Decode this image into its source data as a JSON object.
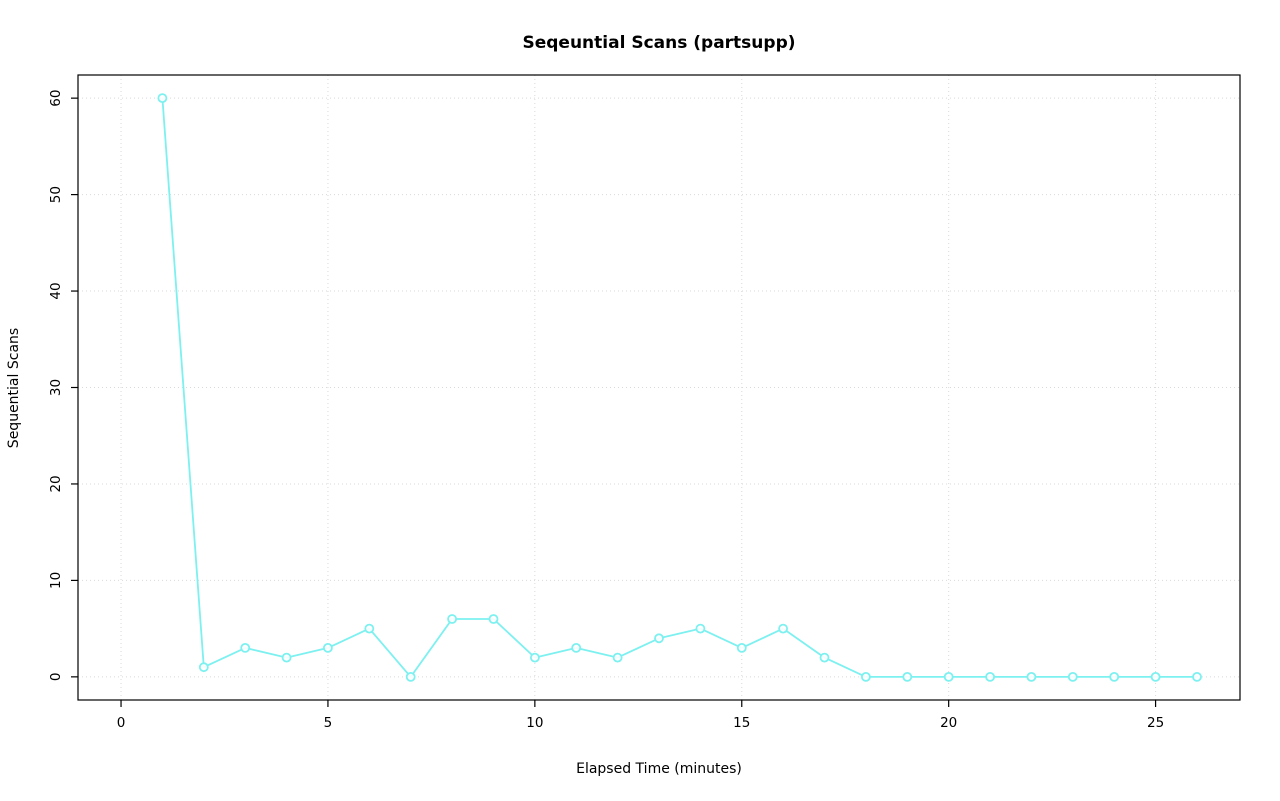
{
  "chart_data": {
    "type": "line",
    "title": "Seqeuntial Scans (partsupp)",
    "xlabel": "Elapsed Time (minutes)",
    "ylabel": "Sequential Scans",
    "x": [
      1,
      2,
      3,
      4,
      5,
      6,
      7,
      8,
      9,
      10,
      11,
      12,
      13,
      14,
      15,
      16,
      17,
      18,
      19,
      20,
      21,
      22,
      23,
      24,
      25,
      26
    ],
    "y": [
      60,
      1,
      3,
      2,
      3,
      5,
      0,
      6,
      6,
      2,
      3,
      2,
      4,
      5,
      3,
      5,
      2,
      0,
      0,
      0,
      0,
      0,
      0,
      0,
      0,
      0
    ],
    "x_ticks": [
      0,
      5,
      10,
      15,
      20,
      25
    ],
    "y_ticks": [
      0,
      10,
      20,
      30,
      40,
      50,
      60
    ],
    "xlim": [
      -1.04,
      27.04
    ],
    "ylim": [
      -2.4,
      62.4
    ],
    "line_color": "#7DF0F0",
    "grid_color": "#D9D9D9",
    "box_color": "#000000",
    "marker": "open-circle",
    "grid": true,
    "legend": "none"
  }
}
